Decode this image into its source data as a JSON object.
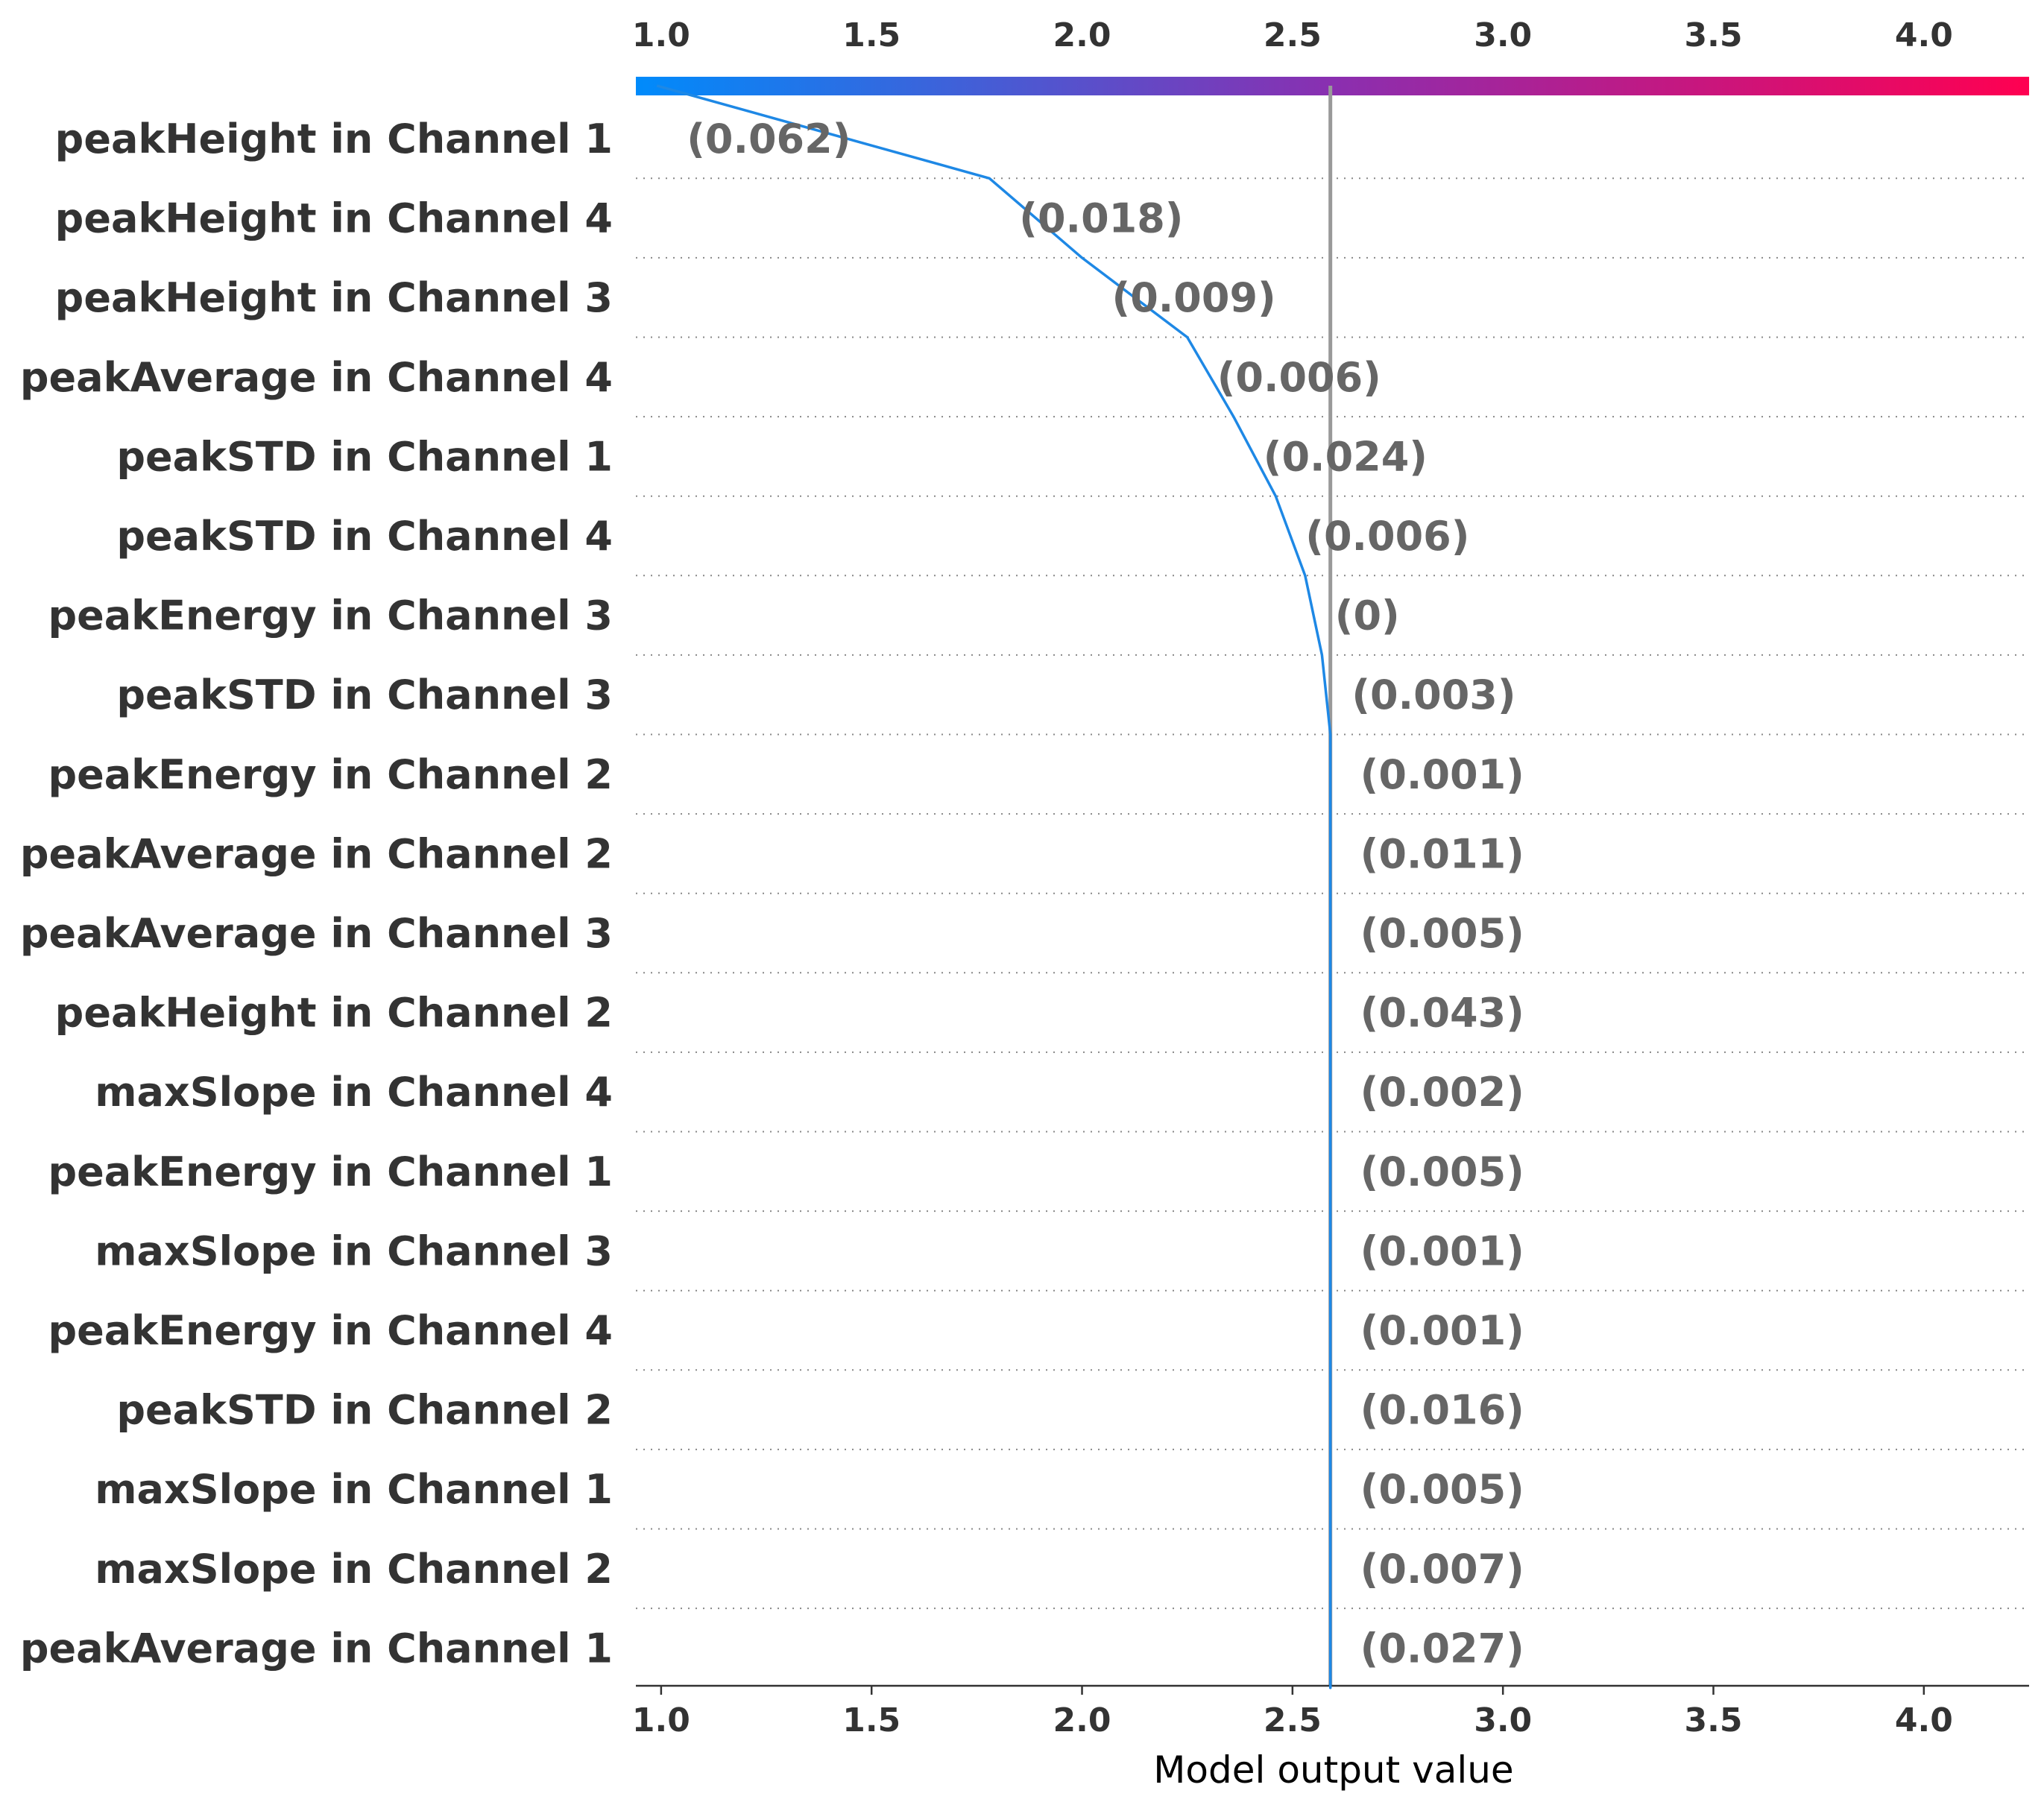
{
  "chart_data": {
    "type": "line",
    "subtype": "shap-decision-plot",
    "xlabel": "Model output value",
    "xlim": [
      0.94,
      4.25
    ],
    "xticks": [
      1.0,
      1.5,
      2.0,
      2.5,
      3.0,
      3.5,
      4.0
    ],
    "xtick_labels": [
      "1.0",
      "1.5",
      "2.0",
      "2.5",
      "3.0",
      "3.5",
      "4.0"
    ],
    "base_value": 2.59,
    "colorbar": {
      "from": "#008bfb",
      "mid": "#8a2fb0",
      "to": "#ff0051"
    },
    "line_color": "#1e88e5",
    "grid": "dotted horizontal",
    "features": [
      {
        "name": "peakHeight in Channel 1",
        "value_label": "(0.062)",
        "cum_value": 0.99
      },
      {
        "name": "peakHeight in Channel 4",
        "value_label": "(0.018)",
        "cum_value": 1.78
      },
      {
        "name": "peakHeight in Channel 3",
        "value_label": "(0.009)",
        "cum_value": 2.0
      },
      {
        "name": "peakAverage in Channel 4",
        "value_label": "(0.006)",
        "cum_value": 2.25
      },
      {
        "name": "peakSTD in Channel 1",
        "value_label": "(0.024)",
        "cum_value": 2.36
      },
      {
        "name": "peakSTD in Channel 4",
        "value_label": "(0.006)",
        "cum_value": 2.46
      },
      {
        "name": "peakEnergy in Channel 3",
        "value_label": "(0)",
        "cum_value": 2.53
      },
      {
        "name": "peakSTD in Channel 3",
        "value_label": "(0.003)",
        "cum_value": 2.57
      },
      {
        "name": "peakEnergy in Channel 2",
        "value_label": "(0.001)",
        "cum_value": 2.59
      },
      {
        "name": "peakAverage in Channel 2",
        "value_label": "(0.011)",
        "cum_value": 2.59
      },
      {
        "name": "peakAverage in Channel 3",
        "value_label": "(0.005)",
        "cum_value": 2.59
      },
      {
        "name": "peakHeight in Channel 2",
        "value_label": "(0.043)",
        "cum_value": 2.59
      },
      {
        "name": "maxSlope in Channel 4",
        "value_label": "(0.002)",
        "cum_value": 2.59
      },
      {
        "name": "peakEnergy in Channel 1",
        "value_label": "(0.005)",
        "cum_value": 2.59
      },
      {
        "name": "maxSlope in Channel 3",
        "value_label": "(0.001)",
        "cum_value": 2.59
      },
      {
        "name": "peakEnergy in Channel 4",
        "value_label": "(0.001)",
        "cum_value": 2.59
      },
      {
        "name": "peakSTD in Channel 2",
        "value_label": "(0.016)",
        "cum_value": 2.59
      },
      {
        "name": "maxSlope in Channel 1",
        "value_label": "(0.005)",
        "cum_value": 2.59
      },
      {
        "name": "maxSlope in Channel 2",
        "value_label": "(0.007)",
        "cum_value": 2.59
      },
      {
        "name": "peakAverage in Channel 1",
        "value_label": "(0.027)",
        "cum_value": 2.59
      }
    ]
  }
}
